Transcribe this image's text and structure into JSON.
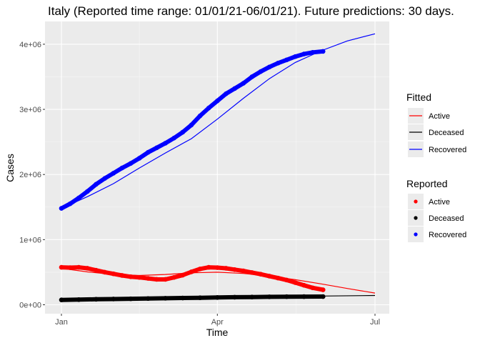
{
  "chart_data": {
    "type": "line",
    "title": "Italy (Reported time range: 01/01/21-06/01/21). Future predictions: 30 days.",
    "xlabel": "Time",
    "ylabel": "Cases",
    "xlim": [
      0,
      181
    ],
    "ylim": [
      0,
      4350000
    ],
    "x_ticks": [
      {
        "x": 0,
        "label": "Jan"
      },
      {
        "x": 90,
        "label": "Apr"
      },
      {
        "x": 181,
        "label": "Jul"
      }
    ],
    "y_ticks": [
      {
        "y": 0,
        "label": "0e+00"
      },
      {
        "y": 1000000,
        "label": "1e+06"
      },
      {
        "y": 2000000,
        "label": "2e+06"
      },
      {
        "y": 3000000,
        "label": "3e+06"
      },
      {
        "y": 4000000,
        "label": "4e+06"
      }
    ],
    "grid": true,
    "legend_placement": "right",
    "legends": [
      {
        "title": "Fitted",
        "kind": "line",
        "items": [
          {
            "label": "Active",
            "color": "#ff0000"
          },
          {
            "label": "Deceased",
            "color": "#000000"
          },
          {
            "label": "Recovered",
            "color": "#0000ff"
          }
        ]
      },
      {
        "title": "Reported",
        "kind": "point",
        "items": [
          {
            "label": "Active",
            "color": "#ff0000"
          },
          {
            "label": "Deceased",
            "color": "#000000"
          },
          {
            "label": "Recovered",
            "color": "#0000ff"
          }
        ]
      }
    ],
    "series": [
      {
        "name": "Active",
        "kind": "fitted",
        "color": "#ff0000",
        "x": [
          0,
          15,
          30,
          45,
          60,
          75,
          90,
          105,
          120,
          135,
          150,
          165,
          181
        ],
        "y": [
          560000,
          505000,
          465000,
          450000,
          465000,
          490000,
          500000,
          480000,
          440000,
          385000,
          320000,
          250000,
          180000
        ]
      },
      {
        "name": "Deceased",
        "kind": "fitted",
        "color": "#000000",
        "x": [
          0,
          30,
          60,
          90,
          120,
          150,
          181
        ],
        "y": [
          75000,
          88000,
          100000,
          112000,
          124000,
          134000,
          143000
        ]
      },
      {
        "name": "Recovered",
        "kind": "fitted",
        "color": "#0000ff",
        "x": [
          0,
          15,
          30,
          45,
          60,
          75,
          90,
          105,
          120,
          135,
          150,
          165,
          181
        ],
        "y": [
          1480000,
          1660000,
          1860000,
          2100000,
          2330000,
          2550000,
          2850000,
          3170000,
          3470000,
          3720000,
          3900000,
          4050000,
          4160000
        ]
      },
      {
        "name": "Active",
        "kind": "reported",
        "color": "#ff0000",
        "x": [
          0,
          5,
          10,
          15,
          20,
          25,
          30,
          35,
          40,
          45,
          50,
          55,
          60,
          65,
          70,
          75,
          80,
          85,
          90,
          95,
          100,
          105,
          110,
          115,
          120,
          125,
          130,
          135,
          140,
          145,
          151
        ],
        "y": [
          575000,
          570000,
          575000,
          560000,
          530000,
          500000,
          475000,
          450000,
          430000,
          420000,
          405000,
          390000,
          390000,
          420000,
          455000,
          505000,
          550000,
          575000,
          570000,
          560000,
          540000,
          520000,
          495000,
          470000,
          440000,
          410000,
          380000,
          340000,
          300000,
          260000,
          230000
        ]
      },
      {
        "name": "Deceased",
        "kind": "reported",
        "color": "#000000",
        "x": [
          0,
          10,
          20,
          30,
          40,
          50,
          60,
          70,
          80,
          90,
          100,
          110,
          120,
          130,
          140,
          151
        ],
        "y": [
          75000,
          79000,
          84000,
          88000,
          92000,
          96000,
          100000,
          104000,
          108000,
          112000,
          116000,
          119000,
          122000,
          124000,
          125000,
          126000
        ]
      },
      {
        "name": "Recovered",
        "kind": "reported",
        "color": "#0000ff",
        "x": [
          0,
          5,
          10,
          15,
          20,
          25,
          30,
          35,
          40,
          45,
          50,
          55,
          60,
          65,
          70,
          75,
          80,
          85,
          90,
          95,
          100,
          105,
          110,
          115,
          120,
          125,
          130,
          135,
          140,
          145,
          151
        ],
        "y": [
          1480000,
          1550000,
          1640000,
          1740000,
          1850000,
          1940000,
          2020000,
          2100000,
          2170000,
          2250000,
          2340000,
          2410000,
          2480000,
          2560000,
          2650000,
          2760000,
          2900000,
          3020000,
          3130000,
          3240000,
          3320000,
          3400000,
          3500000,
          3580000,
          3650000,
          3710000,
          3760000,
          3810000,
          3850000,
          3875000,
          3890000
        ]
      }
    ]
  }
}
